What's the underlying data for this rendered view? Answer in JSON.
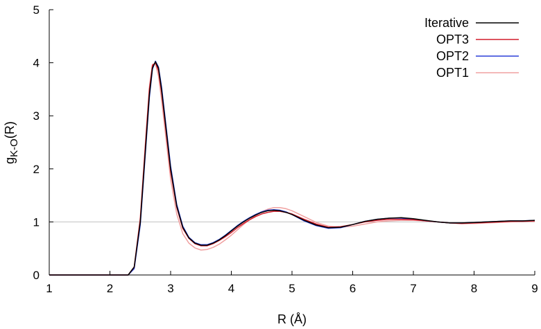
{
  "chart_data": {
    "type": "line",
    "title": "",
    "xlabel": "R (Å)",
    "ylabel_main": "g",
    "ylabel_sub": "K-O",
    "ylabel_tail": "(R)",
    "xlim": [
      1,
      9
    ],
    "ylim": [
      0,
      5
    ],
    "xticks": [
      1,
      2,
      3,
      4,
      5,
      6,
      7,
      8,
      9
    ],
    "yticks": [
      0,
      1,
      2,
      3,
      4,
      5
    ],
    "reference_line": 1,
    "reference_color": "#c0c0c0",
    "grid": false,
    "legend_position": "top-right",
    "series": [
      {
        "name": "Iterative",
        "color": "#000000",
        "x": [
          1.0,
          2.3,
          2.4,
          2.5,
          2.6,
          2.65,
          2.7,
          2.75,
          2.8,
          2.85,
          2.9,
          3.0,
          3.1,
          3.2,
          3.3,
          3.4,
          3.5,
          3.6,
          3.7,
          3.8,
          3.9,
          4.0,
          4.1,
          4.2,
          4.3,
          4.4,
          4.5,
          4.6,
          4.7,
          4.8,
          4.9,
          5.0,
          5.2,
          5.4,
          5.6,
          5.8,
          6.0,
          6.2,
          6.4,
          6.6,
          6.8,
          7.0,
          7.2,
          7.4,
          7.6,
          7.8,
          8.0,
          8.2,
          8.4,
          8.6,
          8.8,
          9.0
        ],
        "y": [
          0,
          0,
          0.15,
          1.0,
          2.6,
          3.4,
          3.9,
          4.02,
          3.9,
          3.5,
          3.0,
          2.0,
          1.3,
          0.9,
          0.7,
          0.6,
          0.56,
          0.56,
          0.6,
          0.66,
          0.74,
          0.83,
          0.92,
          1.0,
          1.07,
          1.13,
          1.18,
          1.21,
          1.22,
          1.21,
          1.18,
          1.14,
          1.03,
          0.94,
          0.89,
          0.9,
          0.95,
          1.01,
          1.05,
          1.07,
          1.08,
          1.06,
          1.03,
          1.0,
          0.98,
          0.98,
          0.99,
          1.0,
          1.01,
          1.02,
          1.02,
          1.03
        ]
      },
      {
        "name": "OPT3",
        "color": "#d21c2c",
        "x": [
          1.0,
          2.3,
          2.4,
          2.5,
          2.6,
          2.65,
          2.7,
          2.75,
          2.8,
          2.85,
          2.9,
          3.0,
          3.1,
          3.2,
          3.3,
          3.4,
          3.5,
          3.6,
          3.7,
          3.8,
          3.9,
          4.0,
          4.1,
          4.2,
          4.3,
          4.4,
          4.5,
          4.6,
          4.7,
          4.8,
          4.9,
          5.0,
          5.2,
          5.4,
          5.6,
          5.8,
          6.0,
          6.2,
          6.4,
          6.6,
          6.8,
          7.0,
          7.2,
          7.4,
          7.6,
          7.8,
          8.0,
          8.2,
          8.4,
          8.6,
          8.8,
          9.0
        ],
        "y": [
          0,
          0,
          0.15,
          1.05,
          2.7,
          3.5,
          3.95,
          4.0,
          3.85,
          3.45,
          2.95,
          1.95,
          1.28,
          0.88,
          0.69,
          0.59,
          0.55,
          0.55,
          0.59,
          0.65,
          0.72,
          0.8,
          0.89,
          0.97,
          1.04,
          1.1,
          1.15,
          1.18,
          1.2,
          1.2,
          1.18,
          1.15,
          1.05,
          0.96,
          0.9,
          0.91,
          0.95,
          1.0,
          1.03,
          1.05,
          1.05,
          1.04,
          1.02,
          1.0,
          0.98,
          0.97,
          0.98,
          0.99,
          1.0,
          1.01,
          1.01,
          1.02
        ]
      },
      {
        "name": "OPT2",
        "color": "#2b3fd8",
        "x": [
          1.0,
          2.3,
          2.4,
          2.5,
          2.6,
          2.65,
          2.7,
          2.75,
          2.8,
          2.85,
          2.9,
          3.0,
          3.1,
          3.2,
          3.3,
          3.4,
          3.5,
          3.6,
          3.7,
          3.8,
          3.9,
          4.0,
          4.1,
          4.2,
          4.3,
          4.4,
          4.5,
          4.6,
          4.7,
          4.8,
          4.9,
          5.0,
          5.2,
          5.4,
          5.6,
          5.8,
          6.0,
          6.2,
          6.4,
          6.6,
          6.8,
          7.0,
          7.2,
          7.4,
          7.6,
          7.8,
          8.0,
          8.2,
          8.4,
          8.6,
          8.8,
          9.0
        ],
        "y": [
          0,
          0,
          0.12,
          0.95,
          2.55,
          3.35,
          3.88,
          4.03,
          3.92,
          3.55,
          3.05,
          2.05,
          1.33,
          0.92,
          0.71,
          0.61,
          0.57,
          0.57,
          0.61,
          0.67,
          0.75,
          0.84,
          0.93,
          1.01,
          1.08,
          1.14,
          1.19,
          1.22,
          1.23,
          1.22,
          1.19,
          1.14,
          1.02,
          0.93,
          0.88,
          0.89,
          0.95,
          1.01,
          1.05,
          1.07,
          1.07,
          1.05,
          1.02,
          1.0,
          0.98,
          0.98,
          0.99,
          1.0,
          1.01,
          1.02,
          1.02,
          1.03
        ]
      },
      {
        "name": "OPT1",
        "color": "#f0a0a0",
        "x": [
          1.0,
          2.3,
          2.4,
          2.5,
          2.6,
          2.65,
          2.7,
          2.75,
          2.8,
          2.85,
          2.9,
          3.0,
          3.1,
          3.2,
          3.3,
          3.4,
          3.5,
          3.6,
          3.7,
          3.8,
          3.9,
          4.0,
          4.1,
          4.2,
          4.3,
          4.4,
          4.5,
          4.6,
          4.7,
          4.8,
          4.9,
          5.0,
          5.2,
          5.4,
          5.6,
          5.8,
          6.0,
          6.2,
          6.4,
          6.6,
          6.8,
          7.0,
          7.2,
          7.4,
          7.6,
          7.8,
          8.0,
          8.2,
          8.4,
          8.6,
          8.8,
          9.0
        ],
        "y": [
          0,
          0,
          0.15,
          1.1,
          2.75,
          3.55,
          3.97,
          3.98,
          3.75,
          3.3,
          2.8,
          1.8,
          1.15,
          0.78,
          0.6,
          0.51,
          0.47,
          0.48,
          0.52,
          0.58,
          0.66,
          0.75,
          0.85,
          0.95,
          1.04,
          1.12,
          1.19,
          1.24,
          1.27,
          1.27,
          1.25,
          1.21,
          1.1,
          0.99,
          0.92,
          0.9,
          0.92,
          0.96,
          1.0,
          1.02,
          1.03,
          1.03,
          1.02,
          1.0,
          0.98,
          0.97,
          0.97,
          0.98,
          0.99,
          1.0,
          1.01,
          1.01
        ]
      }
    ]
  }
}
